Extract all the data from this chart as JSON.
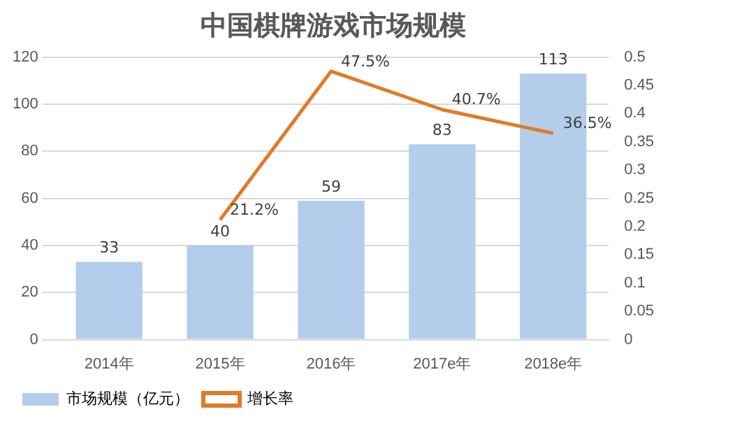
{
  "chart_data": {
    "type": "bar",
    "title": "中国棋牌游戏市场规模",
    "categories": [
      "2014年",
      "2015年",
      "2016年",
      "2017e年",
      "2018e年"
    ],
    "series": [
      {
        "name": "市场规模（亿元）",
        "color": "#b4cdea",
        "values": [
          33,
          40,
          59,
          83,
          113
        ],
        "value_labels": [
          "33",
          "40",
          "59",
          "83",
          "113"
        ]
      },
      {
        "name": "增长率",
        "type": "line",
        "axis": "y2",
        "color": "#e07b2a",
        "values": [
          null,
          0.212,
          0.475,
          0.407,
          0.365
        ],
        "value_labels": [
          null,
          "21.2%",
          "47.5%",
          "40.7%",
          "36.5%"
        ]
      }
    ],
    "ylim": [
      0,
      120
    ],
    "yticks": [
      0,
      20,
      40,
      60,
      80,
      100,
      120
    ],
    "y2lim": [
      0,
      0.5
    ],
    "y2ticks": [
      0,
      0.05,
      0.1,
      0.15,
      0.2,
      0.25,
      0.3,
      0.35,
      0.4,
      0.45,
      0.5
    ],
    "grid": "y",
    "legend": "bottom left",
    "marker": "none"
  }
}
